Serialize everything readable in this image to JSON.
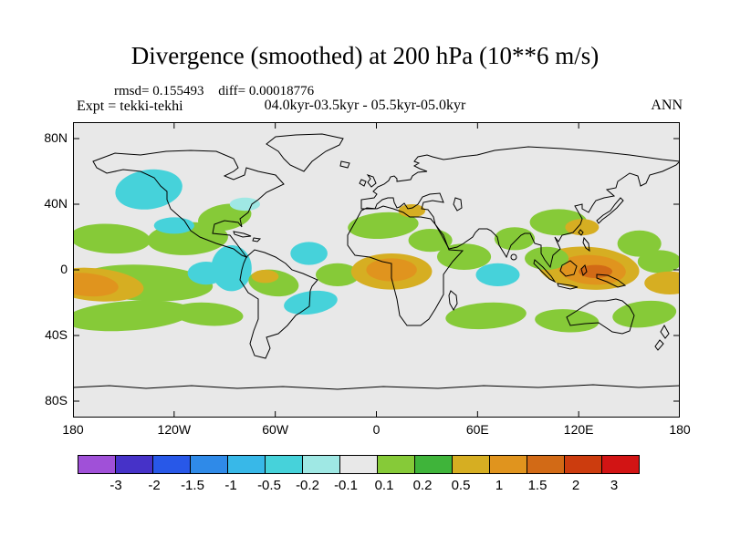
{
  "chart_data": {
    "type": "heatmap",
    "subtype": "filled-contour-world-map",
    "title": "Divergence (smoothed) at 200 hPa (10**6 m/s)",
    "stats": {
      "rmsd_text": "rmsd= 0.155493",
      "diff_text": "diff= 0.00018776",
      "rmsd": 0.155493,
      "diff": 0.00018776
    },
    "experiment_text": "Expt = tekki-tekhi",
    "experiment": "tekki-tekhi",
    "period": "04.0kyr-03.5kyr - 05.5kyr-05.0kyr",
    "season": "ANN",
    "units": "10**6 m/s",
    "projection": "equirectangular",
    "lon_range": [
      -180,
      180
    ],
    "lat_range": [
      -90,
      90
    ],
    "layout": {
      "map_background": "#e8e8e8",
      "coastline_color": "#000000",
      "frame_color": "#000000",
      "legend_position": "bottom"
    },
    "lat_ticks": [
      {
        "value": 80,
        "label": "80N"
      },
      {
        "value": 40,
        "label": "40N"
      },
      {
        "value": 0,
        "label": "0"
      },
      {
        "value": -40,
        "label": "40S"
      },
      {
        "value": -80,
        "label": "80S"
      }
    ],
    "lon_ticks": [
      {
        "value": -180,
        "label": "180"
      },
      {
        "value": -120,
        "label": "120W"
      },
      {
        "value": -60,
        "label": "60W"
      },
      {
        "value": 0,
        "label": "0"
      },
      {
        "value": 60,
        "label": "60E"
      },
      {
        "value": 120,
        "label": "120E"
      },
      {
        "value": 180,
        "label": "180"
      }
    ],
    "colorbar": {
      "levels": [
        "-3",
        "-2",
        "-1.5",
        "-1",
        "-0.5",
        "-0.2",
        "-0.1",
        "0.1",
        "0.2",
        "0.5",
        "1",
        "1.5",
        "2",
        "3"
      ],
      "colors": [
        "#a050d8",
        "#4632c8",
        "#2858e8",
        "#2f8ae8",
        "#38b8e8",
        "#46d2da",
        "#9fe8e4",
        "#e8e8e8",
        "#86ca38",
        "#3fb43a",
        "#d6ae22",
        "#e0941e",
        "#d26a16",
        "#cc3c0e",
        "#d21414"
      ]
    },
    "anomaly_regions": [
      {
        "lon": -135,
        "lat": 49,
        "rlon": 20,
        "rlat": 12,
        "rot": -8,
        "value": -0.3
      },
      {
        "lon": -158,
        "lat": 19,
        "rlon": 24,
        "rlat": 9,
        "rot": 3,
        "value": 0.15
      },
      {
        "lon": -112,
        "lat": 19,
        "rlon": 24,
        "rlat": 10,
        "rot": -3,
        "value": 0.15
      },
      {
        "lon": -120,
        "lat": 27,
        "rlon": 12,
        "rlat": 5,
        "rot": 0,
        "value": -0.3
      },
      {
        "lon": -137,
        "lat": -8,
        "rlon": 40,
        "rlat": 11,
        "rot": 3,
        "value": 0.15
      },
      {
        "lon": -167,
        "lat": -9,
        "rlon": 29,
        "rlat": 10,
        "rot": 5,
        "value": 0.7
      },
      {
        "lon": -172,
        "lat": -9,
        "rlon": 19,
        "rlat": 7,
        "rot": 5,
        "value": 1.2
      },
      {
        "lon": -147,
        "lat": -28,
        "rlon": 38,
        "rlat": 9,
        "rot": -4,
        "value": 0.15
      },
      {
        "lon": -100,
        "lat": -27,
        "rlon": 21,
        "rlat": 7,
        "rot": 4,
        "value": 0.15
      },
      {
        "lon": -86,
        "lat": 1,
        "rlon": 12,
        "rlat": 14,
        "rot": 0,
        "value": -0.3
      },
      {
        "lon": -90,
        "lat": 32,
        "rlon": 16,
        "rlat": 8,
        "rot": -10,
        "value": 0.15
      },
      {
        "lon": -78,
        "lat": 40,
        "rlon": 9,
        "rlat": 4,
        "rot": 0,
        "value": -0.15
      },
      {
        "lon": -101,
        "lat": -2,
        "rlon": 11,
        "rlat": 7,
        "rot": 0,
        "value": -0.3
      },
      {
        "lon": -61,
        "lat": -8,
        "rlon": 15,
        "rlat": 8,
        "rot": 8,
        "value": 0.15
      },
      {
        "lon": -66,
        "lat": -4,
        "rlon": 8,
        "rlat": 4,
        "rot": 0,
        "value": 0.7
      },
      {
        "lon": -39,
        "lat": -20,
        "rlon": 16,
        "rlat": 7,
        "rot": -8,
        "value": -0.3
      },
      {
        "lon": -40,
        "lat": 10,
        "rlon": 11,
        "rlat": 7,
        "rot": 0,
        "value": -0.3
      },
      {
        "lon": -23,
        "lat": -3,
        "rlon": 13,
        "rlat": 7,
        "rot": 0,
        "value": 0.15
      },
      {
        "lon": 9,
        "lat": -1,
        "rlon": 24,
        "rlat": 11,
        "rot": 0,
        "value": 0.7
      },
      {
        "lon": 9,
        "lat": 0,
        "rlon": 15,
        "rlat": 7,
        "rot": 0,
        "value": 1.2
      },
      {
        "lon": 4,
        "lat": 27,
        "rlon": 21,
        "rlat": 8,
        "rot": -4,
        "value": 0.15
      },
      {
        "lon": 21,
        "lat": 36,
        "rlon": 8,
        "rlat": 4,
        "rot": 0,
        "value": 0.7
      },
      {
        "lon": 32,
        "lat": 18,
        "rlon": 13,
        "rlat": 7,
        "rot": 0,
        "value": 0.15
      },
      {
        "lon": 52,
        "lat": 8,
        "rlon": 16,
        "rlat": 8,
        "rot": 0,
        "value": 0.15
      },
      {
        "lon": 72,
        "lat": -3,
        "rlon": 13,
        "rlat": 7,
        "rot": 0,
        "value": -0.3
      },
      {
        "lon": 82,
        "lat": 19,
        "rlon": 12,
        "rlat": 7,
        "rot": 0,
        "value": 0.15
      },
      {
        "lon": 108,
        "lat": 29,
        "rlon": 17,
        "rlat": 8,
        "rot": 0,
        "value": 0.15
      },
      {
        "lon": 122,
        "lat": 26,
        "rlon": 10,
        "rlat": 5,
        "rot": 0,
        "value": 0.7
      },
      {
        "lon": 126,
        "lat": 1,
        "rlon": 30,
        "rlat": 13,
        "rot": 4,
        "value": 0.7
      },
      {
        "lon": 128,
        "lat": 0,
        "rlon": 20,
        "rlat": 9,
        "rot": 4,
        "value": 1.2
      },
      {
        "lon": 130,
        "lat": -1,
        "rlon": 10,
        "rlat": 4,
        "rot": 0,
        "value": 1.7
      },
      {
        "lon": 101,
        "lat": 7,
        "rlon": 13,
        "rlat": 7,
        "rot": 0,
        "value": 0.15
      },
      {
        "lon": 156,
        "lat": 16,
        "rlon": 13,
        "rlat": 8,
        "rot": 0,
        "value": 0.15
      },
      {
        "lon": 168,
        "lat": 5,
        "rlon": 13,
        "rlat": 7,
        "rot": 0,
        "value": 0.15
      },
      {
        "lon": 174,
        "lat": -8,
        "rlon": 15,
        "rlat": 7,
        "rot": 0,
        "value": 0.7
      },
      {
        "lon": 65,
        "lat": -28,
        "rlon": 24,
        "rlat": 8,
        "rot": -4,
        "value": 0.15
      },
      {
        "lon": 113,
        "lat": -31,
        "rlon": 19,
        "rlat": 7,
        "rot": 3,
        "value": 0.15
      },
      {
        "lon": 159,
        "lat": -27,
        "rlon": 19,
        "rlat": 8,
        "rot": -6,
        "value": 0.15
      }
    ]
  }
}
